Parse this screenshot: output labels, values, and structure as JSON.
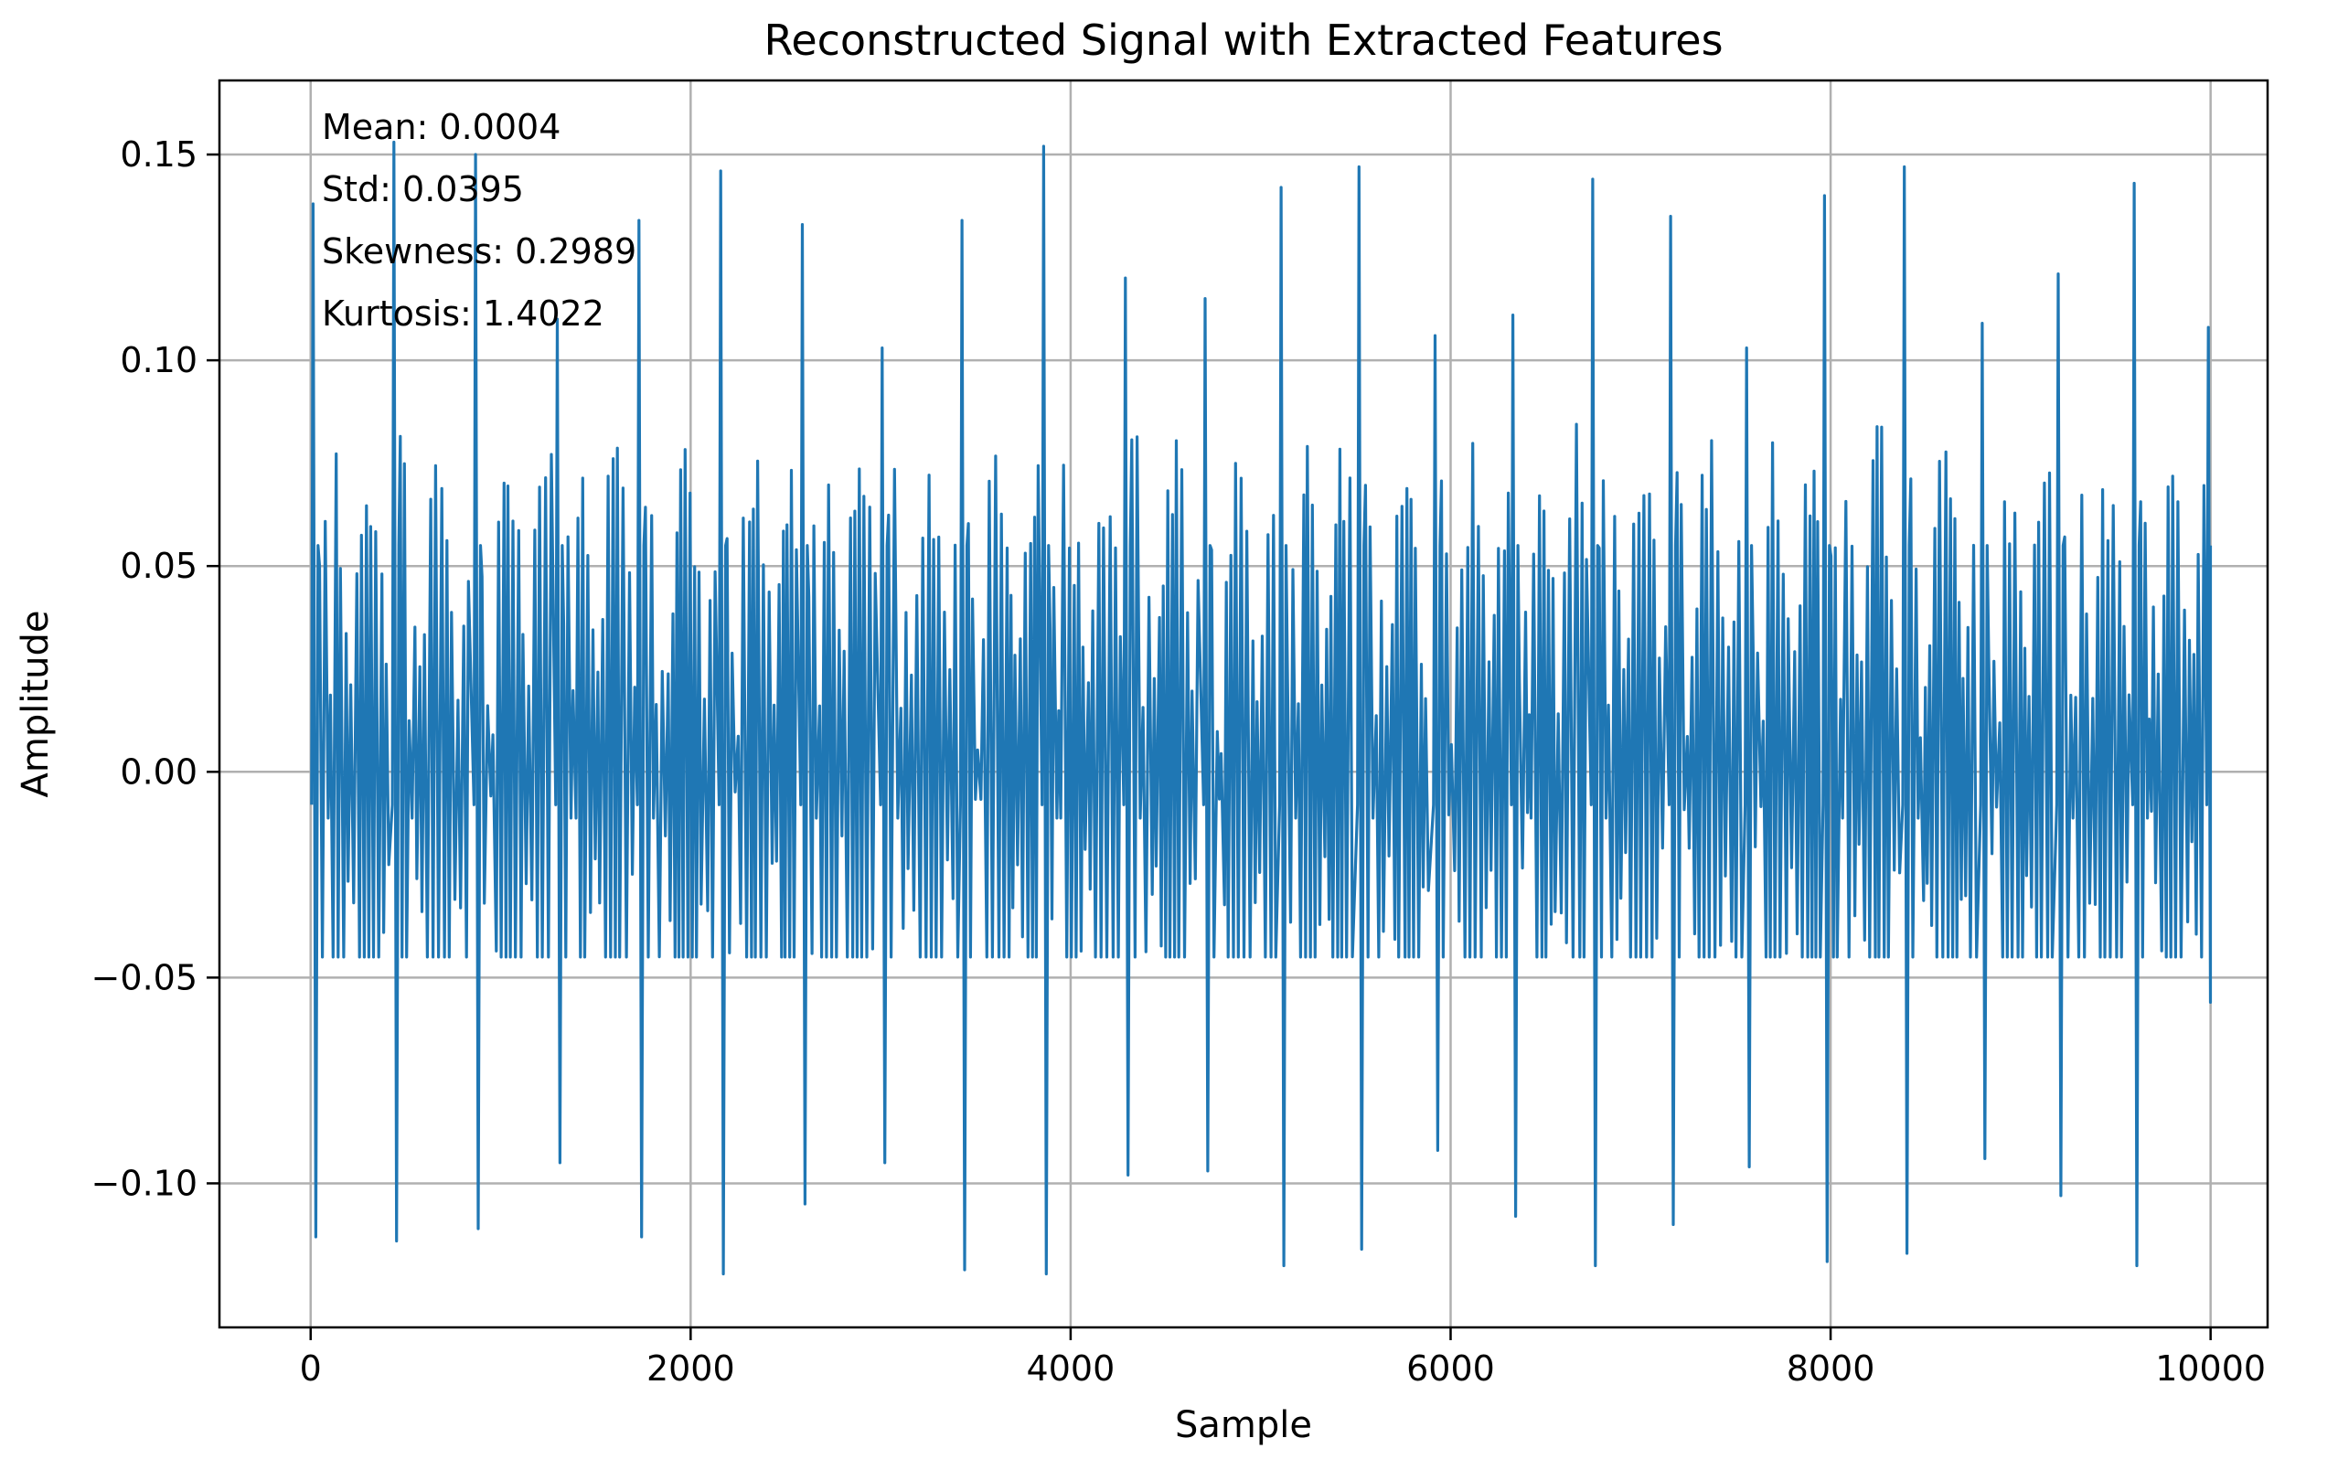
{
  "chart_data": {
    "type": "line",
    "title": "Reconstructed Signal with Extracted Features",
    "xlabel": "Sample",
    "ylabel": "Amplitude",
    "xlim": [
      -480,
      10300
    ],
    "ylim": [
      -0.135,
      0.168
    ],
    "xticks": [
      0,
      2000,
      4000,
      6000,
      8000,
      10000
    ],
    "xtick_labels": [
      "0",
      "2000",
      "4000",
      "6000",
      "8000",
      "10000"
    ],
    "yticks": [
      -0.1,
      -0.05,
      0.0,
      0.05,
      0.1,
      0.15
    ],
    "ytick_labels": [
      "−0.10",
      "−0.05",
      "0.00",
      "0.05",
      "0.10",
      "0.15"
    ],
    "grid": true,
    "line_color": "#1f77b4",
    "annotations": [
      "Mean: 0.0004",
      "Std: 0.0395",
      "Skewness: 0.2989",
      "Kurtosis: 1.4022"
    ],
    "series": [
      {
        "n_samples": 10000,
        "peaks": [
          {
            "x": 5,
            "max": 0.138,
            "min": -0.113
          },
          {
            "x": 430,
            "max": 0.153,
            "min": -0.114
          },
          {
            "x": 860,
            "max": 0.15,
            "min": -0.111
          },
          {
            "x": 1290,
            "max": 0.11,
            "min": -0.095
          },
          {
            "x": 1720,
            "max": 0.134,
            "min": -0.113
          },
          {
            "x": 2150,
            "max": 0.146,
            "min": -0.122
          },
          {
            "x": 2580,
            "max": 0.133,
            "min": -0.105
          },
          {
            "x": 3000,
            "max": 0.103,
            "min": -0.095
          },
          {
            "x": 3420,
            "max": 0.134,
            "min": -0.121
          },
          {
            "x": 3850,
            "max": 0.152,
            "min": -0.122
          },
          {
            "x": 4280,
            "max": 0.12,
            "min": -0.098
          },
          {
            "x": 4700,
            "max": 0.115,
            "min": -0.097
          },
          {
            "x": 5100,
            "max": 0.142,
            "min": -0.12
          },
          {
            "x": 5510,
            "max": 0.147,
            "min": -0.116
          },
          {
            "x": 5910,
            "max": 0.106,
            "min": -0.092
          },
          {
            "x": 6320,
            "max": 0.111,
            "min": -0.108
          },
          {
            "x": 6740,
            "max": 0.144,
            "min": -0.12
          },
          {
            "x": 7150,
            "max": 0.135,
            "min": -0.11
          },
          {
            "x": 7550,
            "max": 0.103,
            "min": -0.096
          },
          {
            "x": 7960,
            "max": 0.14,
            "min": -0.119
          },
          {
            "x": 8380,
            "max": 0.147,
            "min": -0.117
          },
          {
            "x": 8790,
            "max": 0.109,
            "min": -0.094
          },
          {
            "x": 9190,
            "max": 0.121,
            "min": -0.103
          },
          {
            "x": 9590,
            "max": 0.143,
            "min": -0.12
          },
          {
            "x": 9980,
            "max": 0.108,
            "min": -0.056
          }
        ]
      }
    ]
  }
}
